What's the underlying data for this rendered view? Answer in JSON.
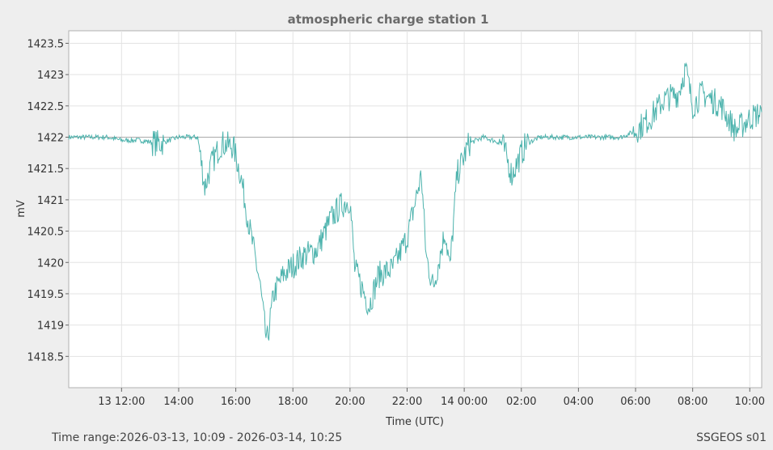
{
  "chart_data": {
    "type": "line",
    "title": "atmospheric charge station 1",
    "xlabel": "Time (UTC)",
    "ylabel": "mV",
    "x_start": "2026-03-13 10:09",
    "x_end": "2026-03-14 10:25",
    "xticks": [
      "13 12:00",
      "14:00",
      "16:00",
      "18:00",
      "20:00",
      "22:00",
      "14 00:00",
      "02:00",
      "04:00",
      "06:00",
      "08:00",
      "10:00"
    ],
    "yticks": [
      "1418.5",
      "1419",
      "1419.5",
      "1420",
      "1420.5",
      "1421",
      "1421.5",
      "1422",
      "1422.5",
      "1423",
      "1423.5"
    ],
    "ylim": [
      1418,
      1423.7
    ],
    "reference_line": 1422,
    "grid": true,
    "color": "#4db3ad",
    "series": [
      {
        "x": [
          "10:09",
          "11:30",
          "12:00",
          "12:40",
          "13:20",
          "14:00",
          "14:40",
          "14:55",
          "15:10",
          "15:30",
          "15:55",
          "16:10",
          "16:30",
          "16:50",
          "17:05",
          "17:20",
          "17:40",
          "18:20",
          "18:50",
          "19:20",
          "19:40",
          "20:00",
          "20:10",
          "20:40",
          "21:00",
          "21:30",
          "22:00",
          "22:30",
          "22:40",
          "22:55",
          "23:20",
          "23:30",
          "23:45",
          "14 00:10",
          "00:40",
          "01:20",
          "01:40",
          "02:10",
          "02:40",
          "03:30",
          "04:30",
          "05:30",
          "06:00",
          "06:30",
          "07:00",
          "07:30",
          "07:45",
          "08:00",
          "08:20",
          "09:00",
          "09:30",
          "10:00",
          "10:25"
        ],
        "y": [
          1422.0,
          1422.0,
          1421.95,
          1421.95,
          1421.9,
          1422.0,
          1422.0,
          1421.2,
          1421.6,
          1421.9,
          1421.85,
          1421.4,
          1420.5,
          1419.7,
          1418.7,
          1419.5,
          1419.8,
          1420.1,
          1420.2,
          1420.7,
          1420.9,
          1421.0,
          1419.9,
          1419.3,
          1419.8,
          1419.9,
          1420.4,
          1421.4,
          1420.1,
          1419.6,
          1420.5,
          1419.9,
          1421.4,
          1421.9,
          1422.0,
          1421.9,
          1421.4,
          1421.9,
          1422.0,
          1422.0,
          1422.0,
          1422.0,
          1422.1,
          1422.3,
          1422.6,
          1422.7,
          1423.1,
          1422.5,
          1422.7,
          1422.5,
          1422.1,
          1422.3,
          1422.4
        ]
      }
    ]
  },
  "footer": {
    "time_range": "Time range:2026-03-13, 10:09 - 2026-03-14, 10:25",
    "station": "SSGEOS s01"
  }
}
